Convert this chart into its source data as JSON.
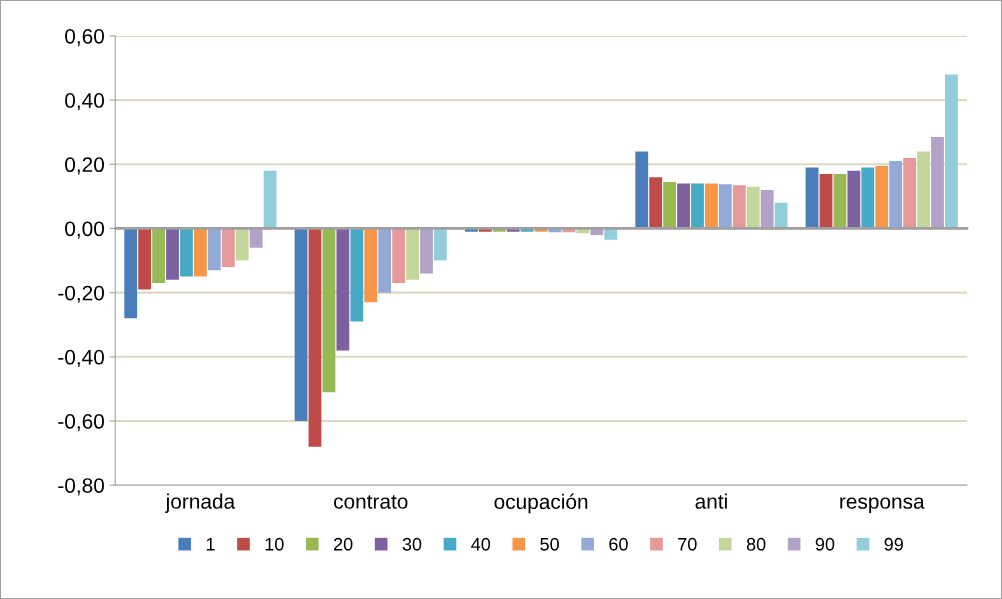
{
  "chart_data": {
    "type": "bar",
    "categories": [
      "jornada",
      "contrato",
      "ocupación",
      "anti",
      "responsa"
    ],
    "series": [
      {
        "name": "1",
        "color": "#4a7ebb",
        "values": [
          -0.28,
          -0.6,
          -0.01,
          0.24,
          0.19
        ]
      },
      {
        "name": "10",
        "color": "#be4b48",
        "values": [
          -0.19,
          -0.68,
          -0.01,
          0.16,
          0.17
        ]
      },
      {
        "name": "20",
        "color": "#98b954",
        "values": [
          -0.17,
          -0.51,
          -0.01,
          0.145,
          0.17
        ]
      },
      {
        "name": "30",
        "color": "#7d60a0",
        "values": [
          -0.16,
          -0.38,
          -0.01,
          0.14,
          0.18
        ]
      },
      {
        "name": "40",
        "color": "#46aac5",
        "values": [
          -0.15,
          -0.29,
          -0.01,
          0.14,
          0.19
        ]
      },
      {
        "name": "50",
        "color": "#f79646",
        "values": [
          -0.15,
          -0.23,
          -0.01,
          0.14,
          0.195
        ]
      },
      {
        "name": "60",
        "color": "#93a9d8",
        "values": [
          -0.13,
          -0.2,
          -0.012,
          0.138,
          0.21
        ]
      },
      {
        "name": "70",
        "color": "#e6999a",
        "values": [
          -0.12,
          -0.17,
          -0.012,
          0.135,
          0.22
        ]
      },
      {
        "name": "80",
        "color": "#c3d69b",
        "values": [
          -0.1,
          -0.16,
          -0.015,
          0.13,
          0.24
        ]
      },
      {
        "name": "90",
        "color": "#b3a2c7",
        "values": [
          -0.06,
          -0.14,
          -0.02,
          0.12,
          0.285
        ]
      },
      {
        "name": "99",
        "color": "#92cddc",
        "values": [
          0.18,
          -0.1,
          -0.035,
          0.08,
          0.48
        ]
      }
    ],
    "ylim": [
      -0.8,
      0.6
    ],
    "yticks": [
      {
        "value": -0.8,
        "label": "-0,80"
      },
      {
        "value": -0.6,
        "label": "-0,60"
      },
      {
        "value": -0.4,
        "label": "-0,40"
      },
      {
        "value": -0.2,
        "label": "-0,20"
      },
      {
        "value": 0,
        "label": "0,00"
      },
      {
        "value": 0.2,
        "label": "0,20"
      },
      {
        "value": 0.4,
        "label": "0,40"
      },
      {
        "value": 0.6,
        "label": "0,60"
      }
    ],
    "grid": "y",
    "legend": "bottom"
  }
}
